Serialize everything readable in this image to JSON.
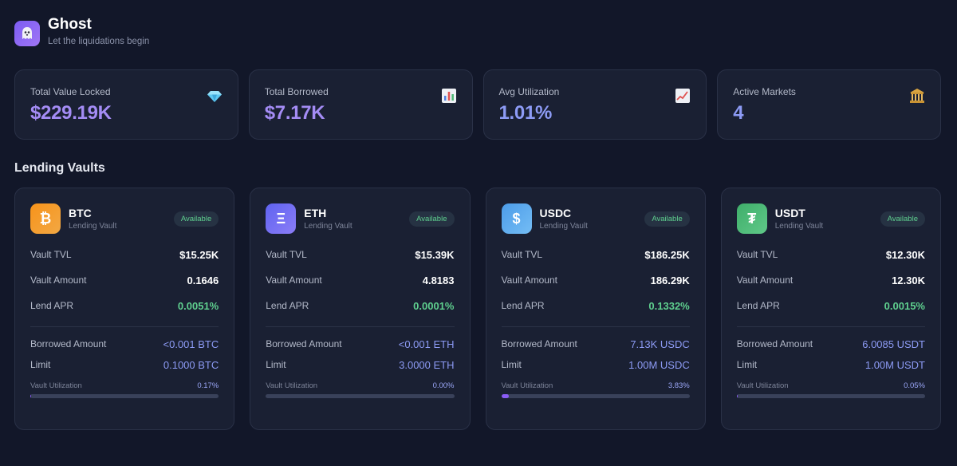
{
  "app": {
    "title": "Ghost",
    "subtitle": "Let the liquidations begin",
    "logo_icon": "ghost-icon"
  },
  "stats": [
    {
      "label": "Total Value Locked",
      "value": "$229.19K",
      "icon": "gem-icon",
      "color": "#a48cf5"
    },
    {
      "label": "Total Borrowed",
      "value": "$7.17K",
      "icon": "bar-chart-icon",
      "color": "#a48cf5"
    },
    {
      "label": "Avg Utilization",
      "value": "1.01%",
      "icon": "trend-up-icon",
      "color": "#8d9bf5"
    },
    {
      "label": "Active Markets",
      "value": "4",
      "icon": "bank-icon",
      "color": "#8d9bf5"
    }
  ],
  "section_title": "Lending Vaults",
  "labels": {
    "vault_tvl": "Vault TVL",
    "vault_amount": "Vault Amount",
    "lend_apr": "Lend APR",
    "borrowed_amount": "Borrowed Amount",
    "limit": "Limit",
    "vault_utilization": "Vault Utilization"
  },
  "vaults": [
    {
      "symbol": "BTC",
      "type": "Lending Vault",
      "status": "Available",
      "glyph": "₿",
      "icon": "bitcoin-icon",
      "color": "#f7931a",
      "tvl": "$15.25K",
      "amount": "0.1646",
      "apr": "0.0051%",
      "borrowed": "<0.001 BTC",
      "limit": "0.1000 BTC",
      "utilization": "0.17%",
      "utilization_fraction": 0.0017
    },
    {
      "symbol": "ETH",
      "type": "Lending Vault",
      "status": "Available",
      "glyph": "Ξ",
      "icon": "ethereum-icon",
      "color": "#6c6ff5",
      "tvl": "$15.39K",
      "amount": "4.8183",
      "apr": "0.0001%",
      "borrowed": "<0.001 ETH",
      "limit": "3.0000 ETH",
      "utilization": "0.00%",
      "utilization_fraction": 0.0
    },
    {
      "symbol": "USDC",
      "type": "Lending Vault",
      "status": "Available",
      "glyph": "$",
      "icon": "dollar-icon",
      "color": "#5aa9f0",
      "tvl": "$186.25K",
      "amount": "186.29K",
      "apr": "0.1332%",
      "borrowed": "7.13K USDC",
      "limit": "1.00M USDC",
      "utilization": "3.83%",
      "utilization_fraction": 0.0383
    },
    {
      "symbol": "USDT",
      "type": "Lending Vault",
      "status": "Available",
      "glyph": "₮",
      "icon": "tether-icon",
      "color": "#4bb873",
      "tvl": "$12.30K",
      "amount": "12.30K",
      "apr": "0.0015%",
      "borrowed": "6.0085 USDT",
      "limit": "1.00M USDT",
      "utilization": "0.05%",
      "utilization_fraction": 0.0005
    }
  ]
}
